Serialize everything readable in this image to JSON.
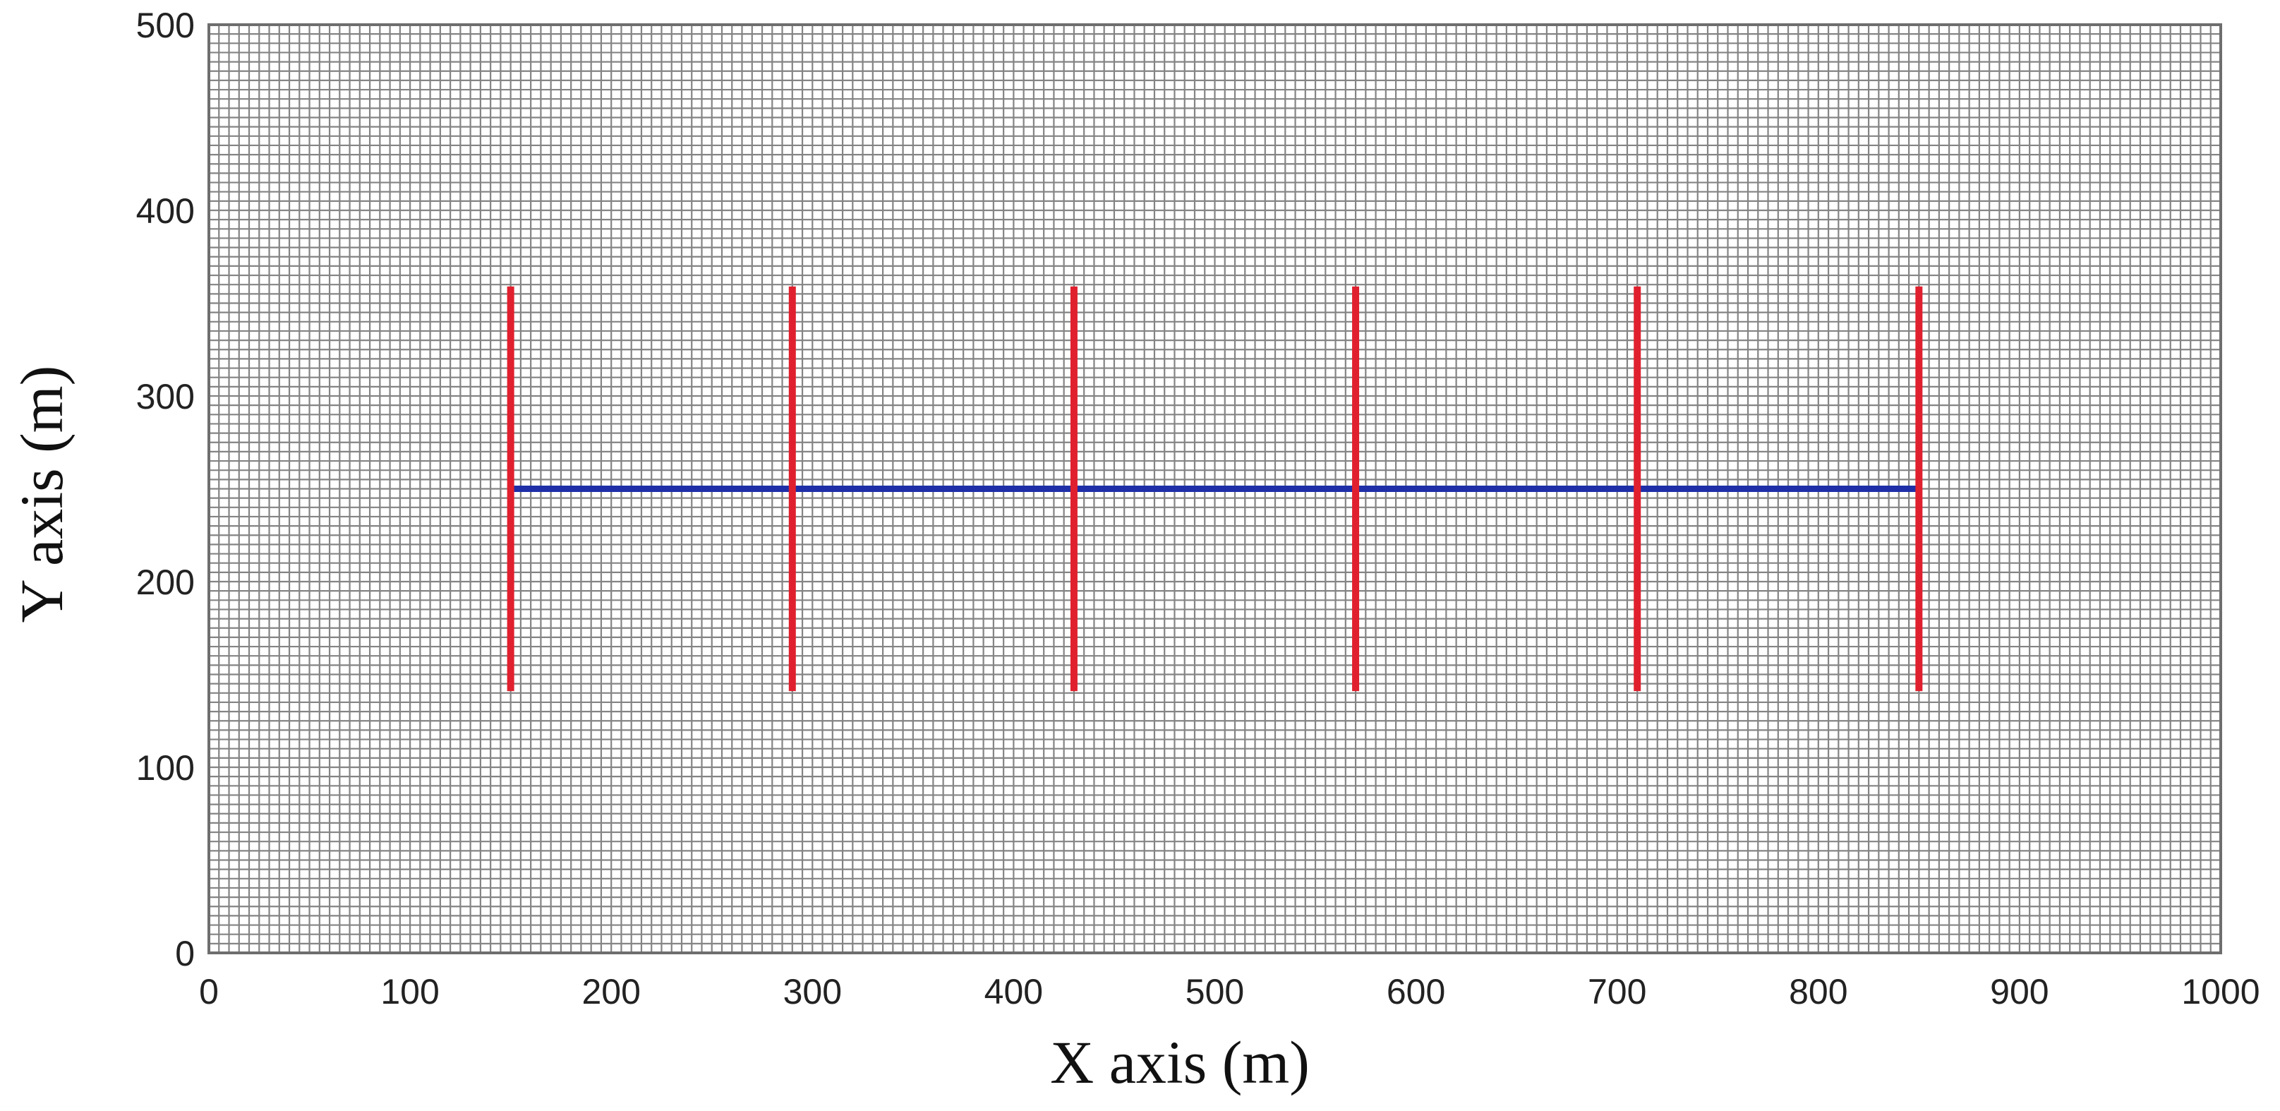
{
  "chart_data": {
    "type": "diagram",
    "xlabel": "X axis (m)",
    "ylabel": "Y axis (m)",
    "xlim": [
      0,
      1000
    ],
    "ylim": [
      0,
      500
    ],
    "x_ticks": [
      0,
      100,
      200,
      300,
      400,
      500,
      600,
      700,
      800,
      900,
      1000
    ],
    "y_ticks": [
      0,
      100,
      200,
      300,
      400,
      500
    ],
    "grid": true,
    "grid_spacing": 5,
    "horizontal_line": {
      "y": 250,
      "x_start": 150,
      "x_end": 850,
      "color": "#1f2fa8"
    },
    "vertical_lines": [
      {
        "x": 150,
        "y_start": 141,
        "y_end": 359
      },
      {
        "x": 290,
        "y_start": 141,
        "y_end": 359
      },
      {
        "x": 430,
        "y_start": 141,
        "y_end": 359
      },
      {
        "x": 570,
        "y_start": 141,
        "y_end": 359
      },
      {
        "x": 710,
        "y_start": 141,
        "y_end": 359
      },
      {
        "x": 850,
        "y_start": 141,
        "y_end": 359
      }
    ],
    "vertical_line_color": "#e0202e",
    "grid_color": "#6e6e6e",
    "frame_color": "#6e6e6e"
  }
}
